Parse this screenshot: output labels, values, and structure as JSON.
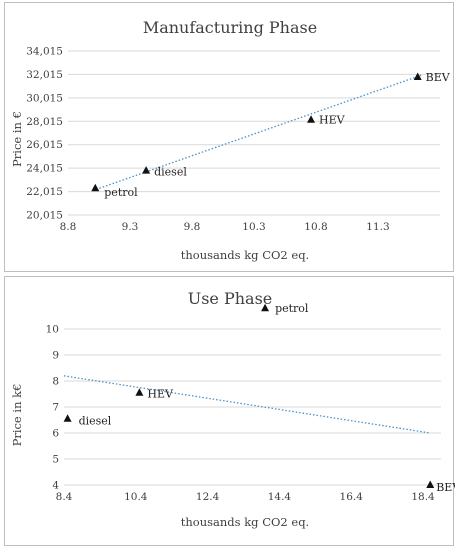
{
  "chart_data": [
    {
      "type": "scatter",
      "title": "Manufacturing Phase",
      "xlabel": "thousands kg CO2 eq.",
      "ylabel": "Price in €",
      "xlim": [
        8.8,
        11.8
      ],
      "ylim": [
        20015,
        34015
      ],
      "xticks": [
        "8.8",
        "9.3",
        "9.8",
        "10.3",
        "10.8",
        "11.3"
      ],
      "xtick_values": [
        8.8,
        9.3,
        9.8,
        10.3,
        10.8,
        11.3
      ],
      "yticks": [
        "20,015",
        "22,015",
        "24,015",
        "26,015",
        "28,015",
        "30,015",
        "32,015",
        "34,015"
      ],
      "ytick_values": [
        20015,
        22015,
        24015,
        26015,
        28015,
        30015,
        32015,
        34015
      ],
      "grid": "horizontal",
      "points": [
        {
          "label": "petrol",
          "x": 9.02,
          "y": 22300
        },
        {
          "label": "diesel",
          "x": 9.43,
          "y": 23800
        },
        {
          "label": "HEV",
          "x": 10.76,
          "y": 28150
        },
        {
          "label": "BEV",
          "x": 11.62,
          "y": 31800
        }
      ],
      "trendline": {
        "x": [
          9.0,
          11.65
        ],
        "y": [
          22100,
          31950
        ]
      }
    },
    {
      "type": "scatter",
      "title": "Use Phase",
      "xlabel": "thousands kg CO2 eq.",
      "ylabel": "Price in k€",
      "xlim": [
        8.4,
        18.9
      ],
      "ylim": [
        4,
        11
      ],
      "xticks": [
        "8.4",
        "10.4",
        "12.4",
        "14.4",
        "16.4",
        "18.4"
      ],
      "xtick_values": [
        8.4,
        10.4,
        12.4,
        14.4,
        16.4,
        18.4
      ],
      "yticks": [
        "4",
        "5",
        "6",
        "7",
        "8",
        "9",
        "10"
      ],
      "ytick_values": [
        4,
        5,
        6,
        7,
        8,
        9,
        10
      ],
      "grid": "horizontal",
      "points": [
        {
          "label": "diesel",
          "x": 8.5,
          "y": 6.55
        },
        {
          "label": "HEV",
          "x": 10.5,
          "y": 7.55
        },
        {
          "label": "petrol",
          "x": 14.0,
          "y": 10.8
        },
        {
          "label": "BEV",
          "x": 18.6,
          "y": 4.0
        }
      ],
      "trendline": {
        "x": [
          8.4,
          18.6
        ],
        "y": [
          8.2,
          6.0
        ]
      }
    }
  ]
}
